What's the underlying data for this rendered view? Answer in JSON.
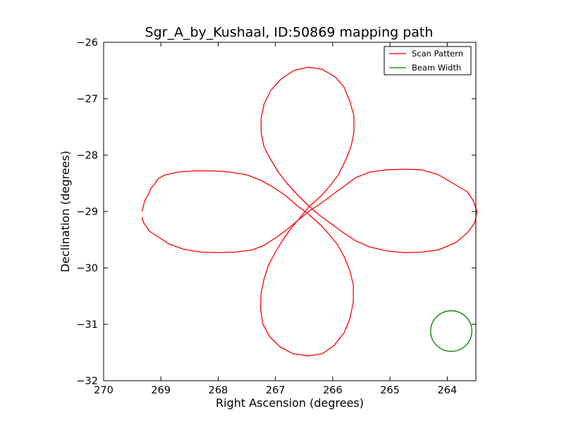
{
  "chart_data": {
    "type": "line",
    "title": "Sgr_A_by_Kushaal, ID:50869 mapping path",
    "xlabel": "Right Ascension (degrees)",
    "ylabel": "Declination (degrees)",
    "xlim": [
      270,
      263.5
    ],
    "ylim": [
      -32,
      -26
    ],
    "xticks": [
      270,
      269,
      268,
      267,
      266,
      265,
      264
    ],
    "xtick_labels": [
      "270",
      "269",
      "268",
      "267",
      "266",
      "265",
      "264"
    ],
    "yticks": [
      -26,
      -27,
      -28,
      -29,
      -30,
      -31,
      -32
    ],
    "ytick_labels": [
      "−26",
      "−27",
      "−28",
      "−29",
      "−30",
      "−31",
      "−32"
    ],
    "grid": false,
    "legend": {
      "position": "top-right",
      "entries": [
        {
          "label": "Scan Pattern",
          "color": "#ff0000"
        },
        {
          "label": "Beam Width",
          "color": "#008000"
        }
      ]
    },
    "series": [
      {
        "name": "Scan Pattern",
        "color": "#ff0000",
        "points": [
          [
            269.33,
            -29.1
          ],
          [
            269.3,
            -29.2
          ],
          [
            269.2,
            -29.35
          ],
          [
            269.05,
            -29.45
          ],
          [
            268.85,
            -29.58
          ],
          [
            268.6,
            -29.67
          ],
          [
            268.3,
            -29.72
          ],
          [
            268.0,
            -29.73
          ],
          [
            267.7,
            -29.72
          ],
          [
            267.4,
            -29.68
          ],
          [
            267.2,
            -29.6
          ],
          [
            267.0,
            -29.47
          ],
          [
            266.8,
            -29.32
          ],
          [
            266.6,
            -29.15
          ],
          [
            266.42,
            -29.0
          ],
          [
            266.2,
            -28.85
          ],
          [
            266.0,
            -28.7
          ],
          [
            265.8,
            -28.55
          ],
          [
            265.6,
            -28.4
          ],
          [
            265.35,
            -28.3
          ],
          [
            265.05,
            -28.26
          ],
          [
            264.75,
            -28.25
          ],
          [
            264.45,
            -28.26
          ],
          [
            264.15,
            -28.35
          ],
          [
            263.9,
            -28.5
          ],
          [
            263.65,
            -28.65
          ],
          [
            263.55,
            -28.8
          ],
          [
            263.48,
            -29.0
          ],
          [
            263.52,
            -29.2
          ],
          [
            263.65,
            -29.38
          ],
          [
            263.85,
            -29.55
          ],
          [
            264.15,
            -29.68
          ],
          [
            264.45,
            -29.72
          ],
          [
            264.75,
            -29.73
          ],
          [
            265.05,
            -29.7
          ],
          [
            265.35,
            -29.63
          ],
          [
            265.6,
            -29.52
          ],
          [
            265.85,
            -29.35
          ],
          [
            266.05,
            -29.2
          ],
          [
            266.25,
            -29.05
          ],
          [
            266.42,
            -28.9
          ],
          [
            266.6,
            -28.72
          ],
          [
            266.8,
            -28.5
          ],
          [
            266.95,
            -28.3
          ],
          [
            267.1,
            -28.05
          ],
          [
            267.2,
            -27.85
          ],
          [
            267.25,
            -27.6
          ],
          [
            267.25,
            -27.35
          ],
          [
            267.2,
            -27.1
          ],
          [
            267.08,
            -26.85
          ],
          [
            266.9,
            -26.65
          ],
          [
            266.68,
            -26.5
          ],
          [
            266.42,
            -26.44
          ],
          [
            266.18,
            -26.48
          ],
          [
            265.95,
            -26.62
          ],
          [
            265.8,
            -26.8
          ],
          [
            265.7,
            -27.05
          ],
          [
            265.63,
            -27.3
          ],
          [
            265.63,
            -27.6
          ],
          [
            265.68,
            -27.85
          ],
          [
            265.78,
            -28.1
          ],
          [
            265.9,
            -28.35
          ],
          [
            266.05,
            -28.55
          ],
          [
            266.2,
            -28.72
          ],
          [
            266.42,
            -28.92
          ],
          [
            266.58,
            -29.12
          ],
          [
            266.73,
            -29.3
          ],
          [
            266.88,
            -29.52
          ],
          [
            267.0,
            -29.72
          ],
          [
            267.12,
            -29.95
          ],
          [
            267.2,
            -30.2
          ],
          [
            267.25,
            -30.45
          ],
          [
            267.26,
            -30.72
          ],
          [
            267.22,
            -31.0
          ],
          [
            267.1,
            -31.22
          ],
          [
            266.92,
            -31.4
          ],
          [
            266.7,
            -31.52
          ],
          [
            266.42,
            -31.56
          ],
          [
            266.18,
            -31.52
          ],
          [
            265.98,
            -31.38
          ],
          [
            265.8,
            -31.15
          ],
          [
            265.7,
            -30.9
          ],
          [
            265.64,
            -30.6
          ],
          [
            265.64,
            -30.3
          ],
          [
            265.7,
            -30.05
          ],
          [
            265.8,
            -29.8
          ],
          [
            265.92,
            -29.58
          ],
          [
            266.05,
            -29.42
          ],
          [
            266.2,
            -29.25
          ],
          [
            266.42,
            -29.05
          ],
          [
            266.62,
            -28.9
          ],
          [
            266.82,
            -28.72
          ],
          [
            267.02,
            -28.58
          ],
          [
            267.25,
            -28.45
          ],
          [
            267.5,
            -28.35
          ],
          [
            267.8,
            -28.3
          ],
          [
            268.1,
            -28.28
          ],
          [
            268.4,
            -28.28
          ],
          [
            268.7,
            -28.3
          ],
          [
            268.95,
            -28.36
          ],
          [
            269.05,
            -28.42
          ],
          [
            269.1,
            -28.5
          ],
          [
            269.18,
            -28.6
          ],
          [
            269.22,
            -28.7
          ],
          [
            269.25,
            -28.75
          ],
          [
            269.28,
            -28.8
          ],
          [
            269.33,
            -29.0
          ]
        ]
      },
      {
        "name": "Beam Width",
        "color": "#008000",
        "shape": "circle",
        "center": [
          263.93,
          -31.12
        ],
        "radius": 0.36
      }
    ]
  }
}
